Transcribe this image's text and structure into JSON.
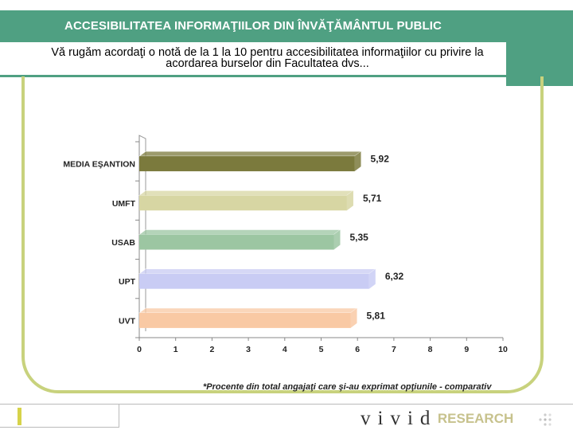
{
  "header": {
    "title": "ACCESIBILITATEA INFORMAŢIILOR DIN ÎNVĂŢĂMÂNTUL PUBLIC",
    "subtitle_line1": "Vă rugăm acordaţi o notă de la 1 la 10 pentru accesibilitatea informaţiilor cu privire  la",
    "subtitle_line2": "acordarea burselor din Facultatea dvs..."
  },
  "footnote": "*Procente din total angajaţi care şi-au exprimat opţiunile - comparativ",
  "brand": {
    "name": "vivid",
    "suffix": "RESEARCH"
  },
  "colors": {
    "header_green": "#4fa082",
    "frame": "#c8d27d"
  },
  "chart_data": {
    "type": "bar",
    "orientation": "horizontal",
    "categories": [
      "MEDIA EŞANTION",
      "UMFT",
      "USAB",
      "UPT",
      "UVT"
    ],
    "values": [
      5.92,
      5.71,
      5.35,
      6.32,
      5.81
    ],
    "value_labels": [
      "5,92",
      "5,71",
      "5,35",
      "6,32",
      "5,81"
    ],
    "bar_colors": [
      "#7b7a3d",
      "#d7d6a3",
      "#9cc6a2",
      "#c9ccf4",
      "#f9c9a4"
    ],
    "xlim": [
      0,
      10
    ],
    "xticks": [
      0,
      1,
      2,
      3,
      4,
      5,
      6,
      7,
      8,
      9,
      10
    ],
    "grid": false,
    "legend": "none"
  }
}
